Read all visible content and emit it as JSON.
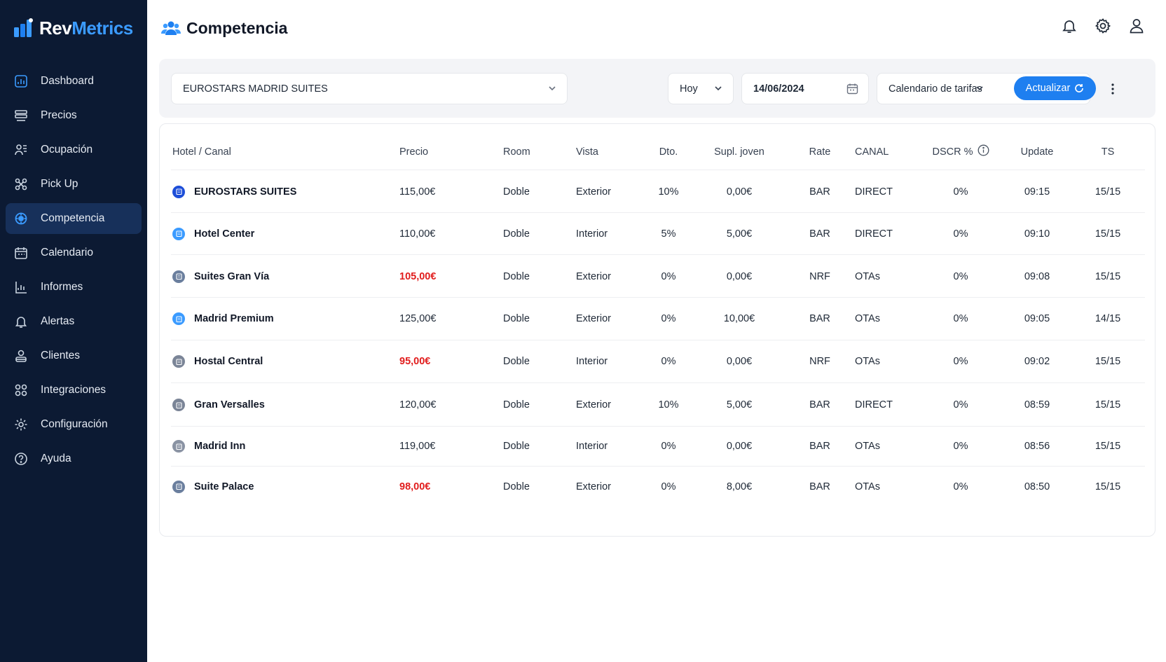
{
  "app": {
    "brand_part1": "Rev",
    "brand_part2": "Metrics",
    "accent_color": "#1e7ff0",
    "sidebar_color": "#0c1a33",
    "warning_color": "#e11d1d"
  },
  "sidebar": {
    "items": [
      {
        "label": "Dashboard",
        "icon": "dashboard-icon"
      },
      {
        "label": "Precios",
        "icon": "prices-icon"
      },
      {
        "label": "Ocupación",
        "icon": "occupancy-icon"
      },
      {
        "label": "Pick Up",
        "icon": "pickup-icon"
      },
      {
        "label": "Competencia",
        "icon": "competition-icon",
        "active": true
      },
      {
        "label": "Calendario",
        "icon": "calendar-icon"
      },
      {
        "label": "Informes",
        "icon": "reports-icon"
      },
      {
        "label": "Alertas",
        "icon": "bell-icon"
      },
      {
        "label": "Clientes",
        "icon": "clients-icon"
      },
      {
        "label": "Integraciones",
        "icon": "integrations-icon"
      },
      {
        "label": "Configuración",
        "icon": "gear-icon"
      },
      {
        "label": "Ayuda",
        "icon": "help-icon"
      }
    ]
  },
  "header": {
    "title": "Competencia",
    "icons": [
      "bell-icon",
      "gear-icon",
      "user-icon"
    ]
  },
  "filters": {
    "hotel": "EUROSTARS MADRID SUITES",
    "period": "Hoy",
    "date": "14/06/2024",
    "view": "Calendario de tarifas",
    "update_label": "Actualizar"
  },
  "table": {
    "headers": {
      "hotel": "Hotel / Canal",
      "precio": "Precio",
      "room": "Room",
      "vista": "Vista",
      "dto": "Dto.",
      "supl": "Supl. joven",
      "rate": "Rate",
      "canal": "CANAL",
      "dscr": "DSCR %",
      "update": "Update",
      "ts": "TS"
    },
    "rows": [
      {
        "hotel": "EUROSTARS SUITES",
        "precio": "115,00€",
        "room": "Doble",
        "vista": "Exterior",
        "dto": "10%",
        "supl": "0,00€",
        "rate": "BAR",
        "canal": "DIRECT",
        "dscr": "0%",
        "update": "09:15",
        "ts": "15/15",
        "icon_color": "#1d4ed8",
        "low": false
      },
      {
        "hotel": "Hotel Center",
        "precio": "110,00€",
        "room": "Doble",
        "vista": "Interior",
        "dto": "5%",
        "supl": "5,00€",
        "rate": "BAR",
        "canal": "DIRECT",
        "dscr": "0%",
        "update": "09:10",
        "ts": "15/15",
        "icon_color": "#3b9bff",
        "low": false
      },
      {
        "hotel": "Suites Gran Vía",
        "precio": "105,00€",
        "room": "Doble",
        "vista": "Exterior",
        "dto": "0%",
        "supl": "0,00€",
        "rate": "NRF",
        "canal": "OTAs",
        "dscr": "0%",
        "update": "09:08",
        "ts": "15/15",
        "icon_color": "#6b7f9e",
        "low": true
      },
      {
        "hotel": "Madrid Premium",
        "precio": "125,00€",
        "room": "Doble",
        "vista": "Exterior",
        "dto": "0%",
        "supl": "10,00€",
        "rate": "BAR",
        "canal": "OTAs",
        "dscr": "0%",
        "update": "09:05",
        "ts": "14/15",
        "icon_color": "#3b9bff",
        "low": false
      },
      {
        "hotel": "Hostal Central",
        "precio": "95,00€",
        "room": "Doble",
        "vista": "Interior",
        "dto": "0%",
        "supl": "0,00€",
        "rate": "NRF",
        "canal": "OTAs",
        "dscr": "0%",
        "update": "09:02",
        "ts": "15/15",
        "icon_color": "#7b8597",
        "low": true
      },
      {
        "hotel": "Gran Versalles",
        "precio": "120,00€",
        "room": "Doble",
        "vista": "Exterior",
        "dto": "10%",
        "supl": "5,00€",
        "rate": "BAR",
        "canal": "DIRECT",
        "dscr": "0%",
        "update": "08:59",
        "ts": "15/15",
        "icon_color": "#7b8597",
        "low": false
      },
      {
        "hotel": "Madrid Inn",
        "precio": "119,00€",
        "room": "Doble",
        "vista": "Interior",
        "dto": "0%",
        "supl": "0,00€",
        "rate": "BAR",
        "canal": "OTAs",
        "dscr": "0%",
        "update": "08:56",
        "ts": "15/15",
        "icon_color": "#8a93a3",
        "low": false
      },
      {
        "hotel": "Suite Palace",
        "precio": "98,00€",
        "room": "Doble",
        "vista": "Exterior",
        "dto": "0%",
        "supl": "8,00€",
        "rate": "BAR",
        "canal": "OTAs",
        "dscr": "0%",
        "update": "08:50",
        "ts": "15/15",
        "icon_color": "#6b7f9e",
        "low": true
      }
    ]
  }
}
